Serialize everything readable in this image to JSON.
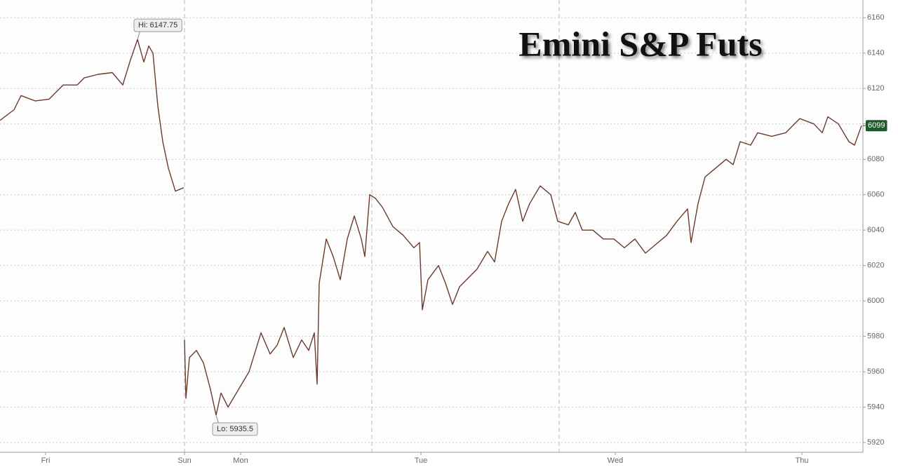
{
  "chart_data": {
    "type": "line",
    "title": "Emini S&P Futs",
    "xlim": [
      0,
      1230
    ],
    "ylim": [
      5914.5,
      6170
    ],
    "xticks": [
      {
        "value": 65,
        "label": "Fri"
      },
      {
        "value": 263,
        "label": "Sun"
      },
      {
        "value": 343,
        "label": "Mon"
      },
      {
        "value": 600,
        "label": "Tue"
      },
      {
        "value": 877,
        "label": "Wed"
      },
      {
        "value": 1143,
        "label": "Thu"
      }
    ],
    "yticks": [
      5920,
      5940,
      5960,
      5980,
      6000,
      6020,
      6040,
      6060,
      6080,
      6100,
      6120,
      6140,
      6160
    ],
    "grid": true,
    "session_breaks": [
      263,
      530,
      797,
      1063
    ],
    "x": [
      0,
      20,
      30,
      50,
      70,
      90,
      110,
      120,
      140,
      160,
      175,
      185,
      196,
      205,
      212,
      218,
      225,
      232,
      240,
      250,
      262,
      262.5,
      263,
      265,
      270,
      280,
      290,
      300,
      308,
      315,
      325,
      340,
      355,
      372,
      385,
      395,
      405,
      418,
      430,
      440,
      448,
      452,
      455,
      465,
      475,
      485,
      495,
      505,
      515,
      520,
      527,
      535,
      545,
      560,
      575,
      590,
      598,
      602,
      610,
      625,
      635,
      645,
      655,
      665,
      680,
      695,
      705,
      715,
      725,
      735,
      745,
      755,
      770,
      785,
      795,
      810,
      820,
      830,
      845,
      860,
      875,
      890,
      905,
      920,
      935,
      950,
      965,
      980,
      985,
      995,
      1005,
      1020,
      1035,
      1045,
      1055,
      1070,
      1080,
      1100,
      1120,
      1140,
      1160,
      1172,
      1180,
      1195,
      1210,
      1218,
      1228
    ],
    "series": [
      {
        "color": "#6a3b2c",
        "values": [
          6102,
          6108,
          6116,
          6113,
          6114,
          6122,
          6122,
          6126,
          6128,
          6129,
          6122,
          6135,
          6147.75,
          6135,
          6144,
          6140,
          6110,
          6090,
          6075,
          6062,
          6064,
          null,
          5978,
          5945,
          5968,
          5972,
          5965,
          5950,
          5935.5,
          5948,
          5940,
          5950,
          5960,
          5982,
          5970,
          5975,
          5985,
          5968,
          5978,
          5972,
          5982,
          5953,
          6010,
          6035,
          6025,
          6012,
          6035,
          6048,
          6035,
          6025,
          6060,
          6058,
          6053,
          6042,
          6037,
          6030,
          6033,
          5995,
          6012,
          6020,
          6010,
          5998,
          6008,
          6012,
          6018,
          6028,
          6022,
          6045,
          6055,
          6063,
          6045,
          6055,
          6065,
          6060,
          6045,
          6043,
          6050,
          6040,
          6040,
          6035,
          6035,
          6030,
          6035,
          6027,
          6032,
          6037,
          6045,
          6052,
          6033,
          6055,
          6070,
          6075,
          6080,
          6077,
          6090,
          6088,
          6095,
          6093,
          6095,
          6103,
          6100,
          6095,
          6104,
          6100,
          6090,
          6088,
          6099
        ]
      }
    ],
    "annotations": [
      {
        "text": "Hi: 6147.75",
        "x": 196,
        "y": 6147.75
      },
      {
        "text": "Lo: 5935.5",
        "x": 308,
        "y": 5935.5
      }
    ],
    "last_value": 6099,
    "last_value_color": "#1e5a2a"
  }
}
